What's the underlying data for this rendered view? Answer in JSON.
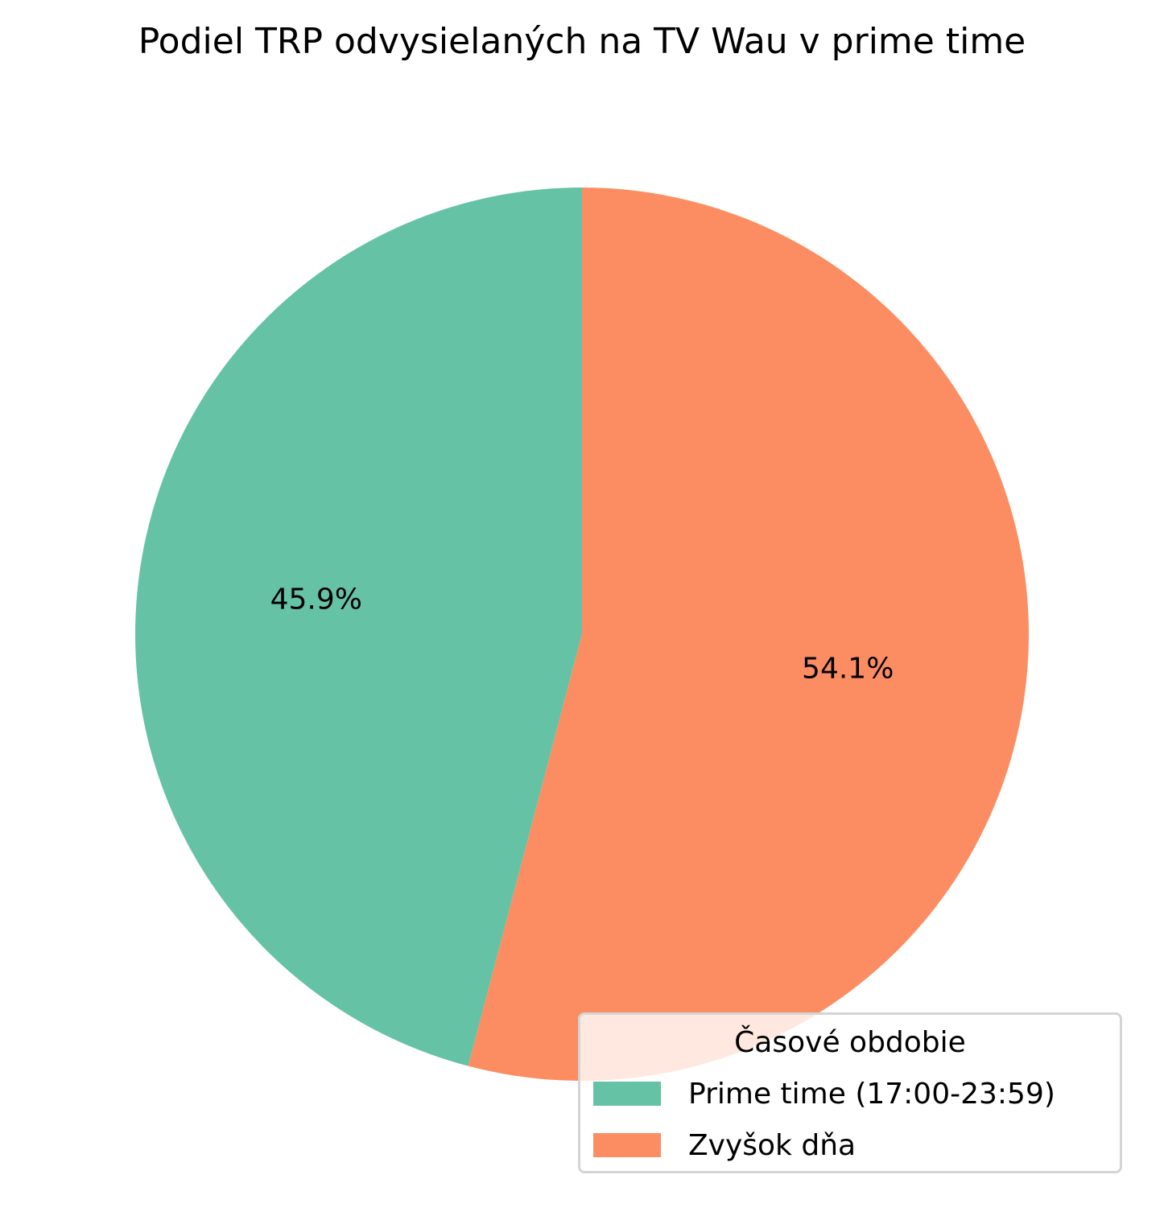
{
  "chart_data": {
    "type": "pie",
    "title": "Podiel TRP odvysielaných na TV Wau v prime time",
    "slices": [
      {
        "label": "Prime time (17:00-23:59)",
        "value": 45.9,
        "value_label": "45.9%",
        "color": "#66c2a5"
      },
      {
        "label": "Zvyšok dňa",
        "value": 54.1,
        "value_label": "54.1%",
        "color": "#fc8d62"
      }
    ],
    "start_angle": "90",
    "direction": "counterclockwise",
    "legend": {
      "title": "Časové obdobie",
      "placement": "lower-right"
    }
  }
}
